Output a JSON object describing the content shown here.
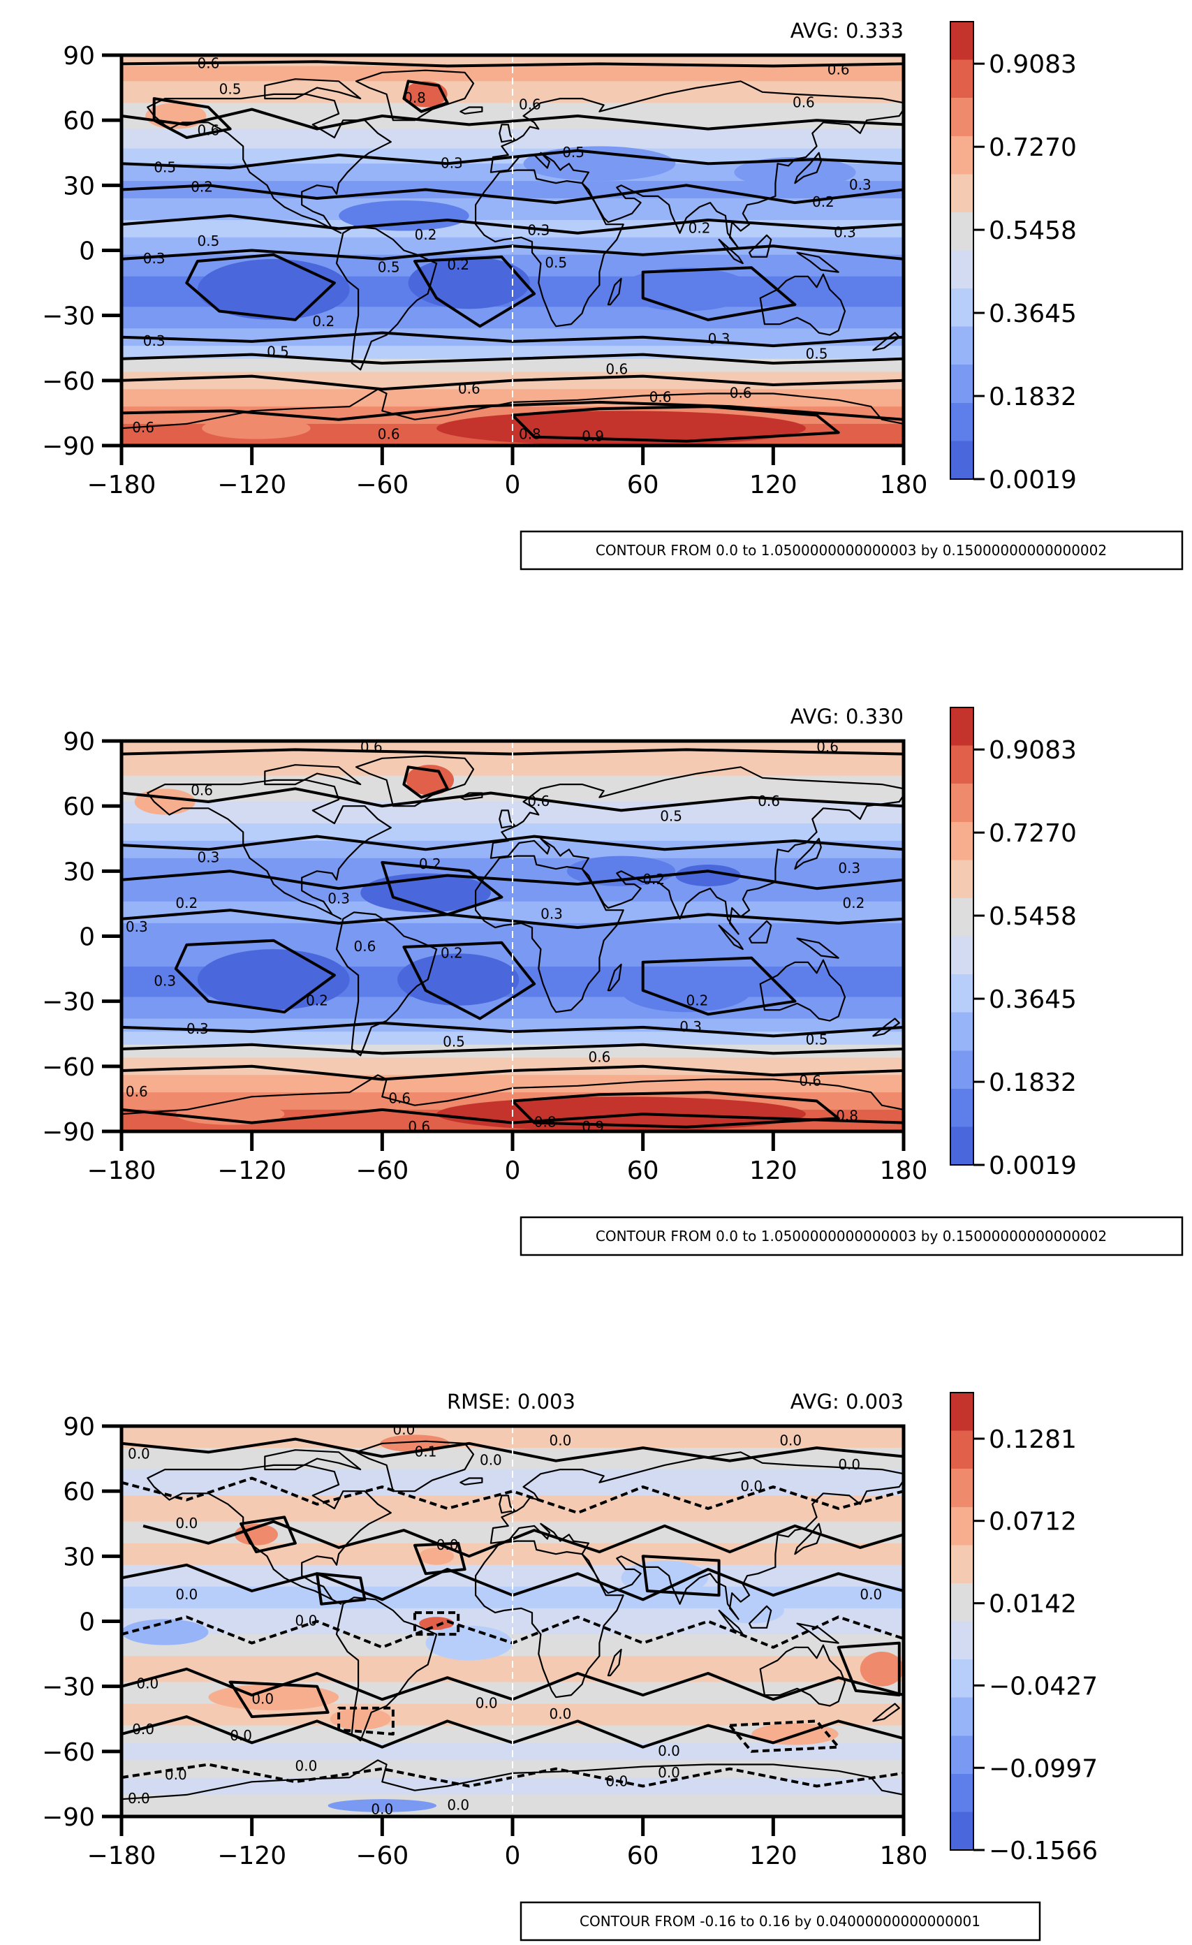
{
  "colors": {
    "ramp": [
      "#4a67dc",
      "#5e7ee9",
      "#7a99f2",
      "#98b4f9",
      "#b7cdfa",
      "#d2dbf1",
      "#dddddd",
      "#f4cbb2",
      "#f6ae8f",
      "#ef8b6c",
      "#e16049",
      "#c4342d"
    ],
    "land_outline": "#000000",
    "contour": "#000000"
  },
  "chart_data": [
    {
      "type": "heatmap",
      "title": "",
      "avg_label": "AVG: 0.333",
      "rmse_label": "",
      "xlabel": "",
      "ylabel": "",
      "xlim": [
        -180,
        180
      ],
      "ylim": [
        -90,
        90
      ],
      "x_ticks": [
        "−180",
        "−120",
        "−60",
        "0",
        "60",
        "120",
        "180"
      ],
      "y_ticks": [
        "90",
        "60",
        "30",
        "0",
        "−30",
        "−60",
        "−90"
      ],
      "colorbar_ticks": [
        "0.9083",
        "0.7270",
        "0.5458",
        "0.3645",
        "0.1832",
        "0.0019"
      ],
      "colorbar_range": [
        0.0019,
        1.0
      ],
      "contour_note": "CONTOUR FROM 0.0 to 1.0500000000000003 by 0.15000000000000002",
      "contour_labels": [
        {
          "text": "0.6",
          "lon": -140,
          "lat": 86
        },
        {
          "text": "0.5",
          "lon": -130,
          "lat": 74
        },
        {
          "text": "0.6",
          "lon": -140,
          "lat": 55
        },
        {
          "text": "0.8",
          "lon": -45,
          "lat": 70
        },
        {
          "text": "0.6",
          "lon": 8,
          "lat": 67
        },
        {
          "text": "0.6",
          "lon": 134,
          "lat": 68
        },
        {
          "text": "0.6",
          "lon": 150,
          "lat": 83
        },
        {
          "text": "0.5",
          "lon": -160,
          "lat": 38
        },
        {
          "text": "0.2",
          "lon": -143,
          "lat": 29
        },
        {
          "text": "0.3",
          "lon": -28,
          "lat": 40
        },
        {
          "text": "0.5",
          "lon": 28,
          "lat": 45
        },
        {
          "text": "0.2",
          "lon": 143,
          "lat": 22
        },
        {
          "text": "0.3",
          "lon": 160,
          "lat": 30
        },
        {
          "text": "0.2",
          "lon": -40,
          "lat": 7
        },
        {
          "text": "0.3",
          "lon": 12,
          "lat": 9
        },
        {
          "text": "0.2",
          "lon": 86,
          "lat": 10
        },
        {
          "text": "0.3",
          "lon": 153,
          "lat": 8
        },
        {
          "text": "0.5",
          "lon": -140,
          "lat": 4
        },
        {
          "text": "0.3",
          "lon": -165,
          "lat": -4
        },
        {
          "text": "0.5",
          "lon": -57,
          "lat": -8
        },
        {
          "text": "0.2",
          "lon": -25,
          "lat": -7
        },
        {
          "text": "0.5",
          "lon": 20,
          "lat": -6
        },
        {
          "text": "0.2",
          "lon": -87,
          "lat": -33
        },
        {
          "text": "0.3",
          "lon": -165,
          "lat": -42
        },
        {
          "text": "0.5",
          "lon": -108,
          "lat": -47
        },
        {
          "text": "0.3",
          "lon": 95,
          "lat": -41
        },
        {
          "text": "0.5",
          "lon": 140,
          "lat": -48
        },
        {
          "text": "0.6",
          "lon": 48,
          "lat": -55
        },
        {
          "text": "0.6",
          "lon": -20,
          "lat": -64
        },
        {
          "text": "0.6",
          "lon": 68,
          "lat": -68
        },
        {
          "text": "0.6",
          "lon": 105,
          "lat": -66
        },
        {
          "text": "0.6",
          "lon": -170,
          "lat": -82
        },
        {
          "text": "0.6",
          "lon": -57,
          "lat": -85
        },
        {
          "text": "0.8",
          "lon": 8,
          "lat": -85
        },
        {
          "text": "0.9",
          "lon": 37,
          "lat": -86
        }
      ]
    },
    {
      "type": "heatmap",
      "title": "",
      "avg_label": "AVG: 0.330",
      "rmse_label": "",
      "xlabel": "",
      "ylabel": "",
      "xlim": [
        -180,
        180
      ],
      "ylim": [
        -90,
        90
      ],
      "x_ticks": [
        "−180",
        "−120",
        "−60",
        "0",
        "60",
        "120",
        "180"
      ],
      "y_ticks": [
        "90",
        "60",
        "30",
        "0",
        "−30",
        "−60",
        "−90"
      ],
      "colorbar_ticks": [
        "0.9083",
        "0.7270",
        "0.5458",
        "0.3645",
        "0.1832",
        "0.0019"
      ],
      "colorbar_range": [
        0.0019,
        1.0
      ],
      "contour_note": "CONTOUR FROM 0.0 to 1.0500000000000003 by 0.15000000000000002",
      "contour_labels": [
        {
          "text": "0.6",
          "lon": -65,
          "lat": 87
        },
        {
          "text": "0.6",
          "lon": 145,
          "lat": 87
        },
        {
          "text": "0.6",
          "lon": -143,
          "lat": 67
        },
        {
          "text": "0.6",
          "lon": 12,
          "lat": 62
        },
        {
          "text": "0.6",
          "lon": 118,
          "lat": 62
        },
        {
          "text": "0.5",
          "lon": 73,
          "lat": 55
        },
        {
          "text": "0.3",
          "lon": -140,
          "lat": 36
        },
        {
          "text": "0.2",
          "lon": -38,
          "lat": 33
        },
        {
          "text": "0.3",
          "lon": 155,
          "lat": 31
        },
        {
          "text": "0.2",
          "lon": -150,
          "lat": 15
        },
        {
          "text": "0.3",
          "lon": -80,
          "lat": 17
        },
        {
          "text": "0.2",
          "lon": 65,
          "lat": 26
        },
        {
          "text": "0.2",
          "lon": 157,
          "lat": 15
        },
        {
          "text": "0.3",
          "lon": -173,
          "lat": 4
        },
        {
          "text": "0.6",
          "lon": -68,
          "lat": -5
        },
        {
          "text": "0.2",
          "lon": -28,
          "lat": -8
        },
        {
          "text": "0.3",
          "lon": 18,
          "lat": 10
        },
        {
          "text": "0.3",
          "lon": -160,
          "lat": -21
        },
        {
          "text": "0.2",
          "lon": -90,
          "lat": -30
        },
        {
          "text": "0.2",
          "lon": 85,
          "lat": -30
        },
        {
          "text": "0.3",
          "lon": -145,
          "lat": -43
        },
        {
          "text": "0.3",
          "lon": 82,
          "lat": -42
        },
        {
          "text": "0.5",
          "lon": -27,
          "lat": -49
        },
        {
          "text": "0.5",
          "lon": 140,
          "lat": -48
        },
        {
          "text": "0.6",
          "lon": 40,
          "lat": -56
        },
        {
          "text": "0.6",
          "lon": -173,
          "lat": -72
        },
        {
          "text": "0.6",
          "lon": -52,
          "lat": -75
        },
        {
          "text": "0.6",
          "lon": 137,
          "lat": -67
        },
        {
          "text": "0.8",
          "lon": 154,
          "lat": -83
        },
        {
          "text": "0.8",
          "lon": 15,
          "lat": -86
        },
        {
          "text": "0.9",
          "lon": 37,
          "lat": -88
        },
        {
          "text": "0.6",
          "lon": -43,
          "lat": -88
        }
      ]
    },
    {
      "type": "heatmap",
      "title": "",
      "avg_label": "AVG: 0.003",
      "rmse_label": "RMSE: 0.003",
      "xlabel": "",
      "ylabel": "",
      "xlim": [
        -180,
        180
      ],
      "ylim": [
        -90,
        90
      ],
      "x_ticks": [
        "−180",
        "−120",
        "−60",
        "0",
        "60",
        "120",
        "180"
      ],
      "y_ticks": [
        "90",
        "60",
        "30",
        "0",
        "−30",
        "−60",
        "−90"
      ],
      "colorbar_ticks": [
        "0.1281",
        "0.0712",
        "0.0142",
        "−0.0427",
        "−0.0997",
        "−0.1566"
      ],
      "colorbar_range": [
        -0.1566,
        0.16
      ],
      "contour_note": "CONTOUR FROM -0.16 to 0.16 by 0.04000000000000001",
      "contour_labels": [
        {
          "text": "0.0",
          "lon": -50,
          "lat": 88
        },
        {
          "text": "0.1",
          "lon": -40,
          "lat": 78
        },
        {
          "text": "0.0",
          "lon": -10,
          "lat": 74
        },
        {
          "text": "0.0",
          "lon": 22,
          "lat": 83
        },
        {
          "text": "0.0",
          "lon": 128,
          "lat": 83
        },
        {
          "text": "0.0",
          "lon": -172,
          "lat": 77
        },
        {
          "text": "0.0",
          "lon": 155,
          "lat": 72
        },
        {
          "text": "0.0",
          "lon": 110,
          "lat": 62
        },
        {
          "text": "0.0",
          "lon": -150,
          "lat": 45
        },
        {
          "text": "0.0",
          "lon": -30,
          "lat": 35
        },
        {
          "text": "0.0",
          "lon": -150,
          "lat": 12
        },
        {
          "text": "0.0",
          "lon": 165,
          "lat": 12
        },
        {
          "text": "0.0",
          "lon": -95,
          "lat": 0
        },
        {
          "text": "0.0",
          "lon": -168,
          "lat": -29
        },
        {
          "text": "0.0",
          "lon": -115,
          "lat": -36
        },
        {
          "text": "0.0",
          "lon": -12,
          "lat": -38
        },
        {
          "text": "0.0",
          "lon": 22,
          "lat": -43
        },
        {
          "text": "0.0",
          "lon": -170,
          "lat": -50
        },
        {
          "text": "0.0",
          "lon": -125,
          "lat": -53
        },
        {
          "text": "0.0",
          "lon": 72,
          "lat": -60
        },
        {
          "text": "0.0",
          "lon": 72,
          "lat": -70
        },
        {
          "text": "0.0",
          "lon": -155,
          "lat": -71
        },
        {
          "text": "0.0",
          "lon": -95,
          "lat": -67
        },
        {
          "text": "0.0",
          "lon": -172,
          "lat": -82
        },
        {
          "text": "0.0",
          "lon": -60,
          "lat": -87
        },
        {
          "text": "0.0",
          "lon": -25,
          "lat": -85
        },
        {
          "text": "0.0",
          "lon": 48,
          "lat": -74
        }
      ]
    }
  ]
}
